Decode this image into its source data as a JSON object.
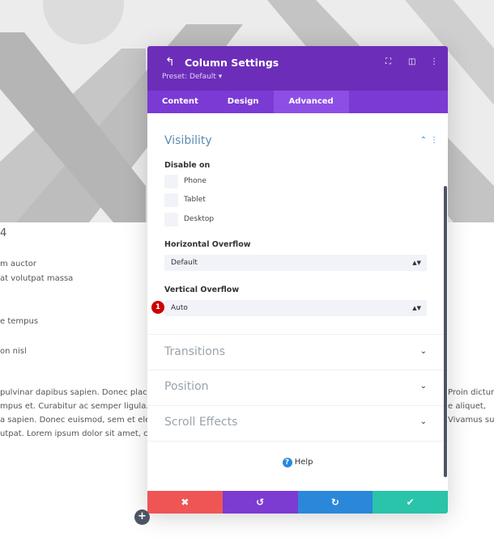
{
  "background": {
    "heading_fragment": "4",
    "lines": [
      "m auctor",
      "at volutpat massa",
      "e tempus",
      "on nisl"
    ],
    "paragraph_left": [
      "pulvinar dapibus sapien. Donec placera",
      "mpus et. Curabitur ac semper ligula. Pr",
      "a sapien. Donec euismod, sem et eleme",
      "utpat. Lorem ipsum dolor sit amet, cons"
    ],
    "paragraph_right": [
      "Proin dictum",
      "e aliquet,",
      "Vivamus sus"
    ]
  },
  "panel": {
    "title": "Column Settings",
    "preset": "Preset: Default ▾",
    "tabs": [
      {
        "label": "Content"
      },
      {
        "label": "Design"
      },
      {
        "label": "Advanced",
        "active": true
      }
    ],
    "visibility": {
      "title": "Visibility",
      "disable_on_label": "Disable on",
      "options": [
        "Phone",
        "Tablet",
        "Desktop"
      ],
      "horizontal_overflow_label": "Horizontal Overflow",
      "horizontal_overflow_value": "Default",
      "vertical_overflow_label": "Vertical Overflow",
      "vertical_overflow_value": "Auto"
    },
    "collapsed_sections": [
      "Transitions",
      "Position",
      "Scroll Effects"
    ],
    "help": "Help",
    "badge": "1",
    "colors": {
      "header": "#6c2eb9",
      "tabs": "#7b3ad4",
      "cancel": "#ef5555",
      "undo": "#7c3bd1",
      "redo": "#2b87da",
      "save": "#29c4a9"
    }
  }
}
